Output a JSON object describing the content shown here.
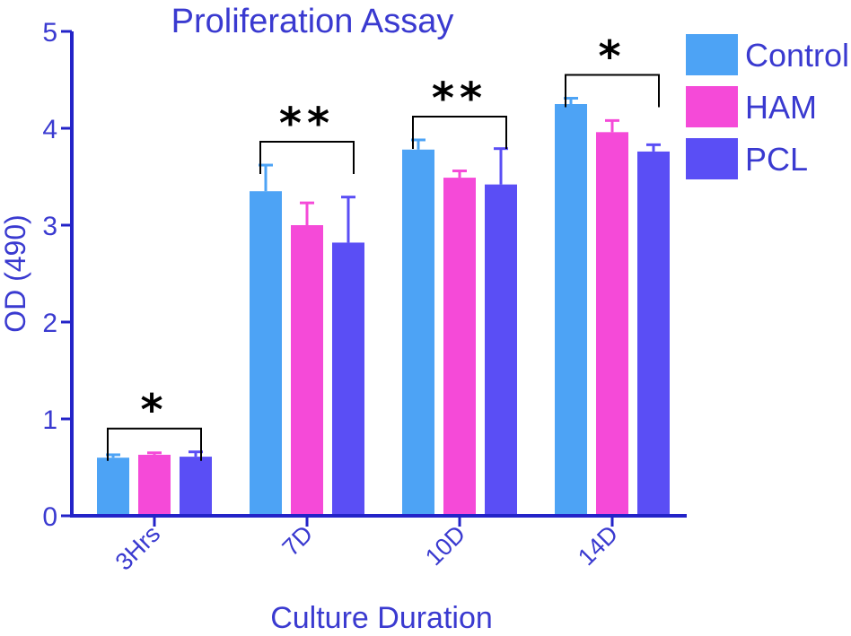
{
  "colors": {
    "axis": "#2323c8",
    "text": "#3a3ad0",
    "bracket": "#000000",
    "series": [
      "#4da3f5",
      "#f54ad8",
      "#5a4ef5"
    ]
  },
  "chart_data": {
    "type": "bar",
    "title": "Proliferation Assay",
    "xlabel": "Culture Duration",
    "ylabel": "OD (490)",
    "ylim": [
      0,
      5
    ],
    "yticks": [
      "0",
      "1",
      "2",
      "3",
      "4",
      "5"
    ],
    "categories": [
      "3Hrs",
      "7D",
      "10D",
      "14D"
    ],
    "series": [
      {
        "name": "Control",
        "values": [
          0.6,
          3.35,
          3.78,
          4.25
        ],
        "errors": [
          0.03,
          0.27,
          0.1,
          0.06
        ]
      },
      {
        "name": "HAM",
        "values": [
          0.63,
          3.0,
          3.49,
          3.96
        ],
        "errors": [
          0.02,
          0.23,
          0.07,
          0.12
        ]
      },
      {
        "name": "PCL",
        "values": [
          0.61,
          2.82,
          3.42,
          3.76
        ],
        "errors": [
          0.05,
          0.47,
          0.37,
          0.07
        ]
      }
    ],
    "significance": [
      "*",
      "**",
      "**",
      "*"
    ],
    "legend_position": "top-right",
    "grid": false
  }
}
